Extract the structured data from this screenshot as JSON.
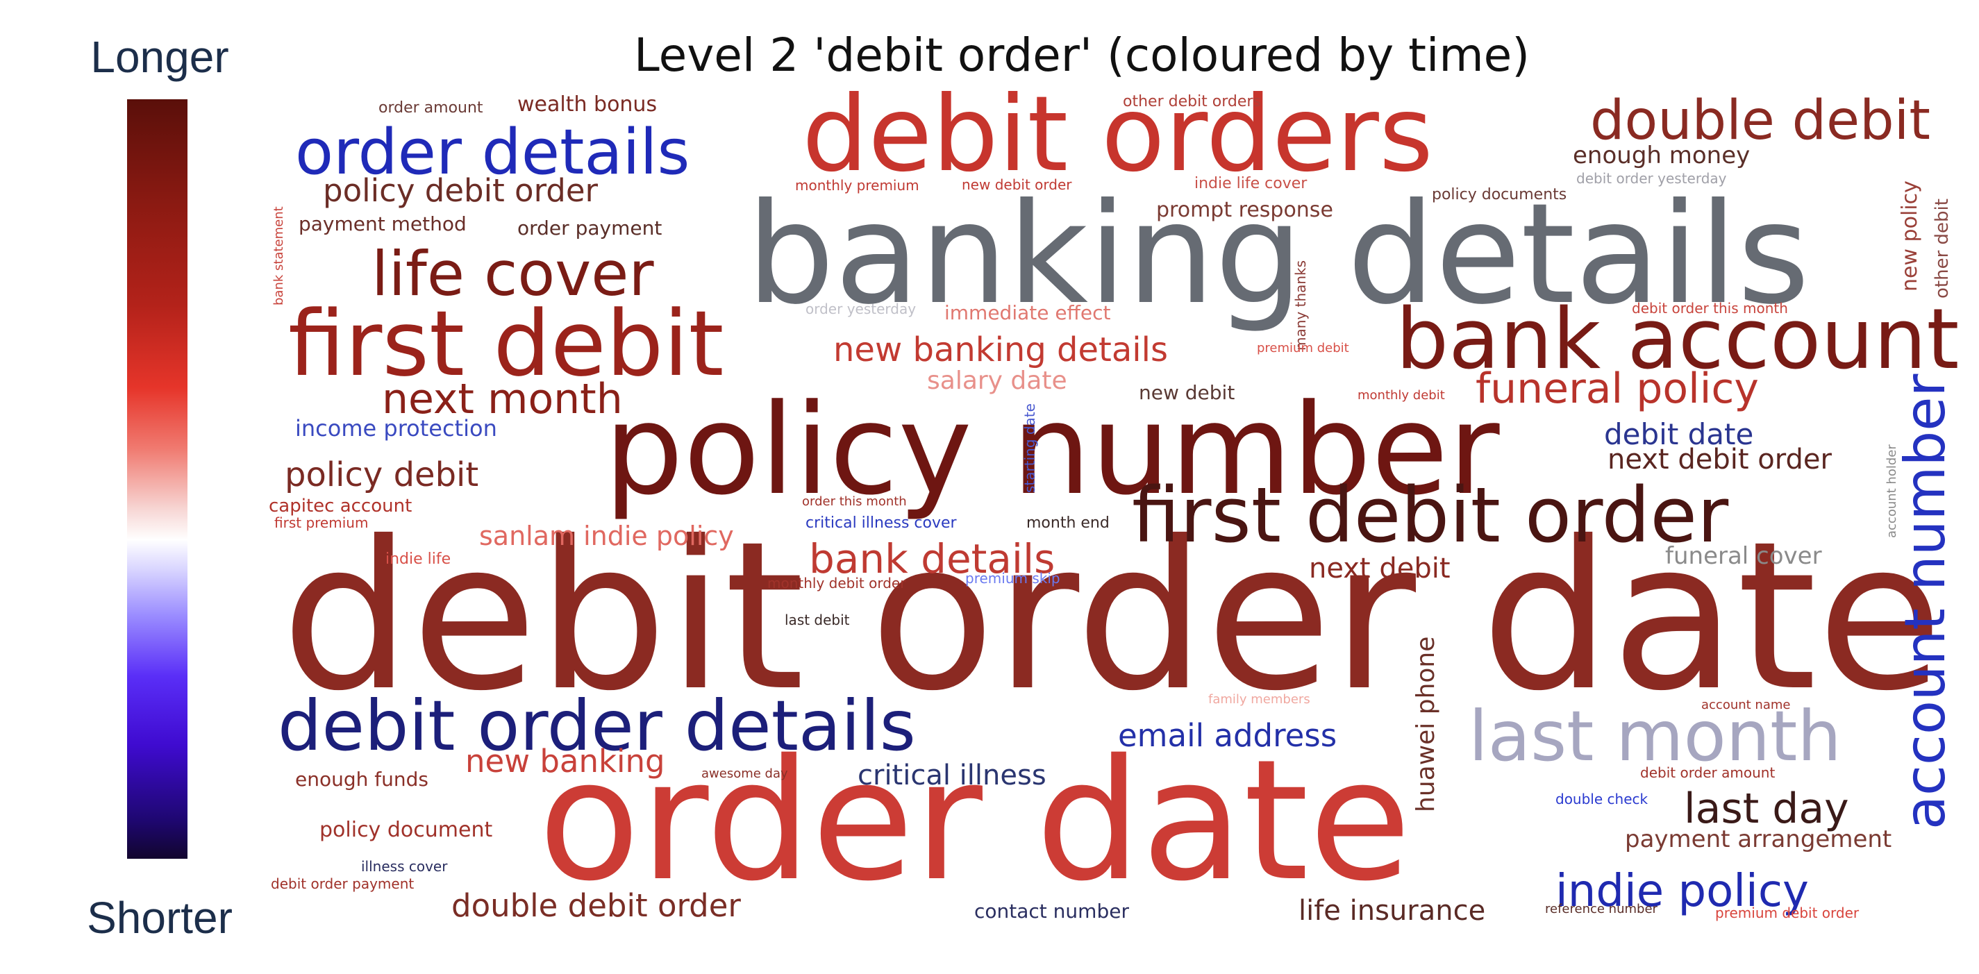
{
  "colorbar": {
    "top_label": "Longer",
    "bottom_label": "Shorter"
  },
  "chart_data": {
    "type": "wordcloud",
    "title": "Level 2 'debit order' (coloured by time)",
    "words": [
      {
        "text": "debit order date",
        "color": "#8b2a22"
      },
      {
        "text": "order date",
        "color": "#cc3c35"
      },
      {
        "text": "banking details",
        "color": "#666b73"
      },
      {
        "text": "policy number",
        "color": "#6e1612"
      },
      {
        "text": "debit orders",
        "color": "#c7352d"
      },
      {
        "text": "first debit",
        "color": "#9b231b"
      },
      {
        "text": "bank account",
        "color": "#781b15"
      },
      {
        "text": "first debit order",
        "color": "#4a1512"
      },
      {
        "text": "debit order details",
        "color": "#1c1f7a"
      },
      {
        "text": "last month",
        "color": "#a6a6c0"
      },
      {
        "text": "order details",
        "color": "#1f2ab8"
      },
      {
        "text": "double debit",
        "color": "#8a2a22"
      },
      {
        "text": "life cover",
        "color": "#7a1c15"
      },
      {
        "text": "account number",
        "color": "#2432c0"
      },
      {
        "text": "next month",
        "color": "#8a2018"
      },
      {
        "text": "funeral policy",
        "color": "#b8332b"
      },
      {
        "text": "indie policy",
        "color": "#1f2ab0"
      },
      {
        "text": "bank details",
        "color": "#bf3a32"
      },
      {
        "text": "policy debit order",
        "color": "#6b2d26"
      },
      {
        "text": "last day",
        "color": "#3a1a18"
      },
      {
        "text": "double debit order",
        "color": "#7a2d25"
      },
      {
        "text": "email address",
        "color": "#2330a8"
      },
      {
        "text": "new banking details",
        "color": "#c23a31"
      },
      {
        "text": "policy debit",
        "color": "#7a2a23"
      },
      {
        "text": "new banking",
        "color": "#c8413a"
      },
      {
        "text": "critical illness",
        "color": "#2a3570"
      },
      {
        "text": "debit date",
        "color": "#2a3590"
      },
      {
        "text": "next debit order",
        "color": "#5a2520"
      },
      {
        "text": "next debit",
        "color": "#8a2a22"
      },
      {
        "text": "life insurance",
        "color": "#5a2a25"
      },
      {
        "text": "huawei phone",
        "color": "#6a3028"
      },
      {
        "text": "sanlam indie policy",
        "color": "#e06860"
      },
      {
        "text": "salary date",
        "color": "#e8908a"
      },
      {
        "text": "enough money",
        "color": "#5a2e28"
      },
      {
        "text": "payment arrangement",
        "color": "#7a3a32"
      },
      {
        "text": "funeral cover",
        "color": "#8a8a8a"
      },
      {
        "text": "income protection",
        "color": "#3a4ac0"
      },
      {
        "text": "new policy",
        "color": "#9a4038"
      },
      {
        "text": "prompt response",
        "color": "#7a3a32"
      },
      {
        "text": "policy document",
        "color": "#a0322a"
      },
      {
        "text": "wealth bonus",
        "color": "#7a2a23"
      },
      {
        "text": "contact number",
        "color": "#2a2e60"
      },
      {
        "text": "order payment",
        "color": "#5a2e28"
      },
      {
        "text": "payment method",
        "color": "#6a2e28"
      },
      {
        "text": "enough funds",
        "color": "#8a3028"
      },
      {
        "text": "capitec account",
        "color": "#b0322a"
      },
      {
        "text": "immediate effect",
        "color": "#e07870"
      },
      {
        "text": "new debit",
        "color": "#5a3a35"
      },
      {
        "text": "other debit",
        "color": "#8a4a45"
      },
      {
        "text": "order amount",
        "color": "#6a3a35"
      },
      {
        "text": "other debit orders",
        "color": "#b04038"
      },
      {
        "text": "monthly premium",
        "color": "#c03a33"
      },
      {
        "text": "new debit order",
        "color": "#c03a33"
      },
      {
        "text": "indie life cover",
        "color": "#c85048"
      },
      {
        "text": "policy documents",
        "color": "#6a3a35"
      },
      {
        "text": "debit order yesterday",
        "color": "#a0a0a8"
      },
      {
        "text": "bank statement",
        "color": "#c8443c"
      },
      {
        "text": "many thanks",
        "color": "#8a3a35"
      },
      {
        "text": "order yesterday",
        "color": "#c0c0c8"
      },
      {
        "text": "debit order this month",
        "color": "#c8443c"
      },
      {
        "text": "premium debit",
        "color": "#d85048"
      },
      {
        "text": "monthly debit",
        "color": "#c03a33"
      },
      {
        "text": "starting date",
        "color": "#4a5ad0"
      },
      {
        "text": "account holder",
        "color": "#8a8a8a"
      },
      {
        "text": "order this month",
        "color": "#a0322a"
      },
      {
        "text": "critical illness cover",
        "color": "#2a3ac0"
      },
      {
        "text": "month end",
        "color": "#3a2a28"
      },
      {
        "text": "first premium",
        "color": "#c03a33"
      },
      {
        "text": "indie life",
        "color": "#d85048"
      },
      {
        "text": "monthly debit order",
        "color": "#a0322a"
      },
      {
        "text": "premium skip",
        "color": "#6a7af0"
      },
      {
        "text": "last debit",
        "color": "#3a2a28"
      },
      {
        "text": "family members",
        "color": "#f0a8a0"
      },
      {
        "text": "account name",
        "color": "#a0322a"
      },
      {
        "text": "awesome day",
        "color": "#8a3028"
      },
      {
        "text": "debit order amount",
        "color": "#a0322a"
      },
      {
        "text": "double check",
        "color": "#2a3ad0"
      },
      {
        "text": "illness cover",
        "color": "#2a2e60"
      },
      {
        "text": "debit order payment",
        "color": "#a0322a"
      },
      {
        "text": "reference number",
        "color": "#5a2e28"
      },
      {
        "text": "premium debit order",
        "color": "#d8443c"
      }
    ]
  }
}
